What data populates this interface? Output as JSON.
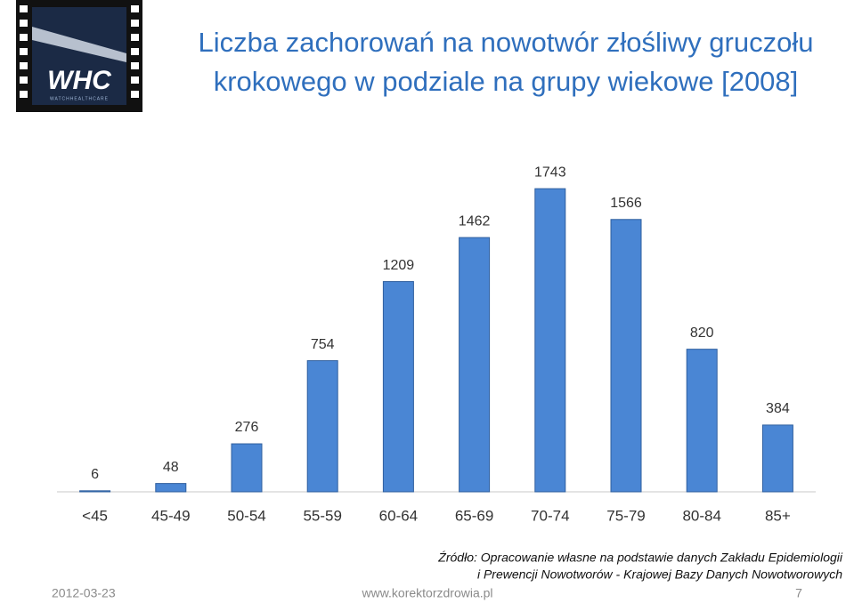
{
  "logo": {
    "text": "WHC",
    "subtext": "WATCHHEALTHCARE"
  },
  "chart_data": {
    "type": "bar",
    "title": "Liczba zachorowań na nowotwór złośliwy gruczołu",
    "subtitle": "krokowego w podziale na grupy wiekowe [2008]",
    "categories": [
      "<45",
      "45-49",
      "50-54",
      "55-59",
      "60-64",
      "65-69",
      "70-74",
      "75-79",
      "80-84",
      "85+"
    ],
    "values": [
      6,
      48,
      276,
      754,
      1209,
      1462,
      1743,
      1566,
      820,
      384
    ],
    "color": "#4a86d4",
    "ylim": [
      0,
      1800
    ],
    "source": [
      "Źródło: Opracowanie własne na podstawie danych Zakładu Epidemiologii",
      "i Prewencji Nowotworów - Krajowej Bazy Danych Nowotworowych"
    ]
  },
  "footer": {
    "date": "2012-03-23",
    "url": "www.korektorzdrowia.pl",
    "page": "7"
  }
}
